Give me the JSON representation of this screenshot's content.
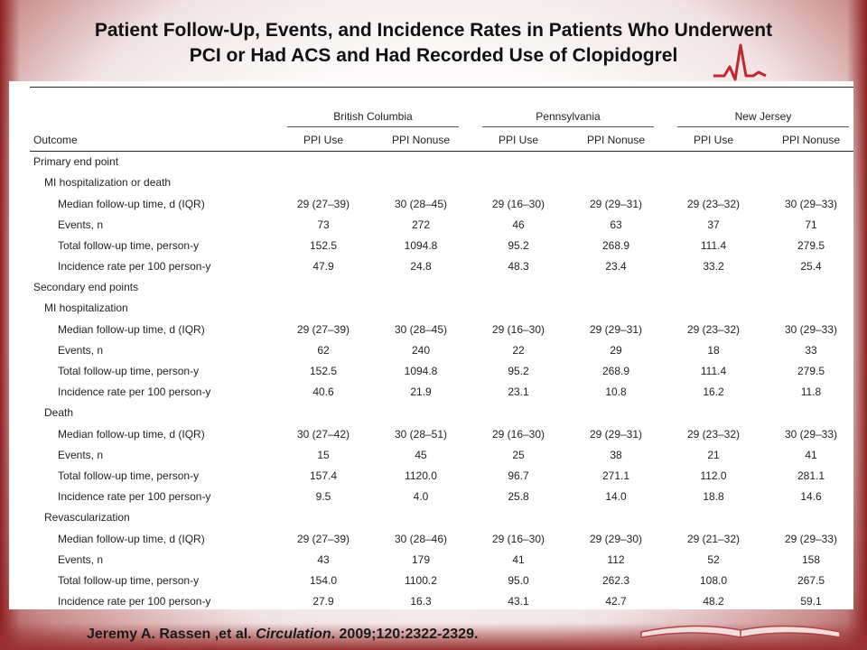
{
  "slide": {
    "title_line1": "Patient Follow-Up, Events, and Incidence Rates in Patients Who Underwent",
    "title_line2": "PCI or Had ACS and Had Recorded Use of Clopidogrel"
  },
  "table": {
    "outcome_header": "Outcome",
    "regions": [
      "British Columbia",
      "Pennsylvania",
      "New Jersey"
    ],
    "subheaders": [
      "PPI Use",
      "PPI Nonuse",
      "PPI Use",
      "PPI Nonuse",
      "PPI Use",
      "PPI Nonuse"
    ],
    "rows": [
      {
        "label": "Primary end point",
        "level": 0,
        "values": []
      },
      {
        "label": "MI hospitalization or death",
        "level": 1,
        "values": []
      },
      {
        "label": "Median follow-up time, d (IQR)",
        "level": 2,
        "values": [
          "29 (27–39)",
          "30 (28–45)",
          "29 (16–30)",
          "29 (29–31)",
          "29 (23–32)",
          "30 (29–33)"
        ]
      },
      {
        "label": "Events, n",
        "level": 2,
        "values": [
          "73",
          "272",
          "46",
          "63",
          "37",
          "71"
        ]
      },
      {
        "label": "Total follow-up time, person-y",
        "level": 2,
        "values": [
          "152.5",
          "1094.8",
          "95.2",
          "268.9",
          "111.4",
          "279.5"
        ]
      },
      {
        "label": "Incidence rate per 100 person-y",
        "level": 2,
        "values": [
          "47.9",
          "24.8",
          "48.3",
          "23.4",
          "33.2",
          "25.4"
        ]
      },
      {
        "label": "Secondary end points",
        "level": 0,
        "values": []
      },
      {
        "label": "MI hospitalization",
        "level": 1,
        "values": []
      },
      {
        "label": "Median follow-up time, d (IQR)",
        "level": 2,
        "values": [
          "29 (27–39)",
          "30 (28–45)",
          "29 (16–30)",
          "29 (29–31)",
          "29 (23–32)",
          "30 (29–33)"
        ]
      },
      {
        "label": "Events, n",
        "level": 2,
        "values": [
          "62",
          "240",
          "22",
          "29",
          "18",
          "33"
        ]
      },
      {
        "label": "Total follow-up time, person-y",
        "level": 2,
        "values": [
          "152.5",
          "1094.8",
          "95.2",
          "268.9",
          "111.4",
          "279.5"
        ]
      },
      {
        "label": "Incidence rate per 100 person-y",
        "level": 2,
        "values": [
          "40.6",
          "21.9",
          "23.1",
          "10.8",
          "16.2",
          "11.8"
        ]
      },
      {
        "label": "Death",
        "level": 1,
        "values": []
      },
      {
        "label": "Median follow-up time, d (IQR)",
        "level": 2,
        "values": [
          "30 (27–42)",
          "30 (28–51)",
          "29 (16–30)",
          "29 (29–31)",
          "29 (23–32)",
          "30 (29–33)"
        ]
      },
      {
        "label": "Events, n",
        "level": 2,
        "values": [
          "15",
          "45",
          "25",
          "38",
          "21",
          "41"
        ]
      },
      {
        "label": "Total follow-up time, person-y",
        "level": 2,
        "values": [
          "157.4",
          "1120.0",
          "96.7",
          "271.1",
          "112.0",
          "281.1"
        ]
      },
      {
        "label": "Incidence rate per 100 person-y",
        "level": 2,
        "values": [
          "9.5",
          "4.0",
          "25.8",
          "14.0",
          "18.8",
          "14.6"
        ]
      },
      {
        "label": "Revascularization",
        "level": 1,
        "values": []
      },
      {
        "label": "Median follow-up time, d (IQR)",
        "level": 2,
        "values": [
          "29 (27–39)",
          "30 (28–46)",
          "29 (16–30)",
          "29 (29–30)",
          "29 (21–32)",
          "29 (29–33)"
        ]
      },
      {
        "label": "Events, n",
        "level": 2,
        "values": [
          "43",
          "179",
          "41",
          "112",
          "52",
          "158"
        ]
      },
      {
        "label": "Total follow-up time, person-y",
        "level": 2,
        "values": [
          "154.0",
          "1100.2",
          "95.0",
          "262.3",
          "108.0",
          "267.5"
        ]
      },
      {
        "label": "Incidence rate per 100 person-y",
        "level": 2,
        "values": [
          "27.9",
          "16.3",
          "43.1",
          "42.7",
          "48.2",
          "59.1"
        ]
      }
    ]
  },
  "citation": {
    "authors": "Jeremy A. Rassen ,et al. ",
    "journal": "Circulation",
    "details": ". 2009;120:2322-2329."
  },
  "colors": {
    "frame": "#9b3232",
    "ecg_line": "#c0282d"
  },
  "icons": [
    "ecg-heartbeat-icon",
    "open-book-icon"
  ]
}
